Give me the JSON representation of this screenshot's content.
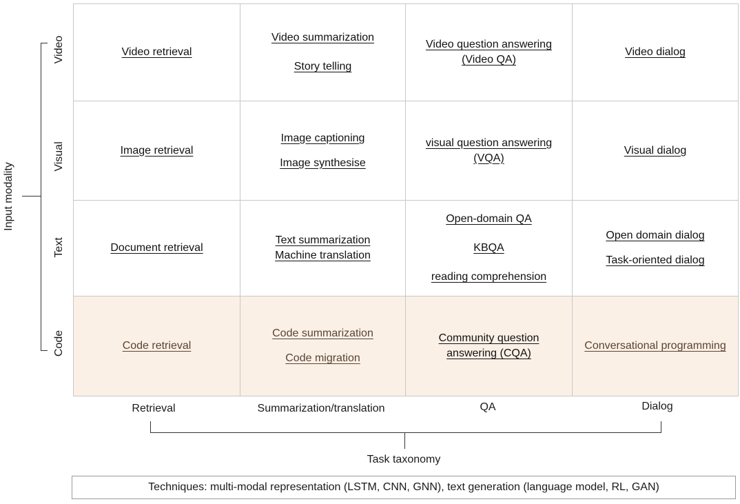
{
  "rows": [
    {
      "label": "Video",
      "cells": [
        [
          "Video retrieval"
        ],
        [
          "Video summarization",
          "Story telling"
        ],
        [
          "Video question answering",
          "(Video QA)"
        ],
        [
          "Video dialog"
        ]
      ]
    },
    {
      "label": "Visual",
      "cells": [
        [
          "Image retrieval"
        ],
        [
          "Image captioning",
          "Image synthesise"
        ],
        [
          "visual question answering",
          "(VQA)"
        ],
        [
          "Visual dialog"
        ]
      ]
    },
    {
      "label": "Text",
      "cells": [
        [
          "Document retrieval"
        ],
        [
          "Text summarization",
          "Machine translation"
        ],
        [
          "Open-domain QA",
          "KBQA",
          "reading comprehension"
        ],
        [
          "Open domain dialog",
          "Task-oriented dialog"
        ]
      ]
    },
    {
      "label": "Code",
      "cells": [
        [
          "Code retrieval"
        ],
        [
          "Code summarization",
          "Code migration"
        ],
        [
          "Community question",
          "answering (CQA)"
        ],
        [
          "Conversational programming"
        ]
      ]
    }
  ],
  "columns": [
    "Retrieval",
    "Summarization/translation",
    "QA",
    "Dialog"
  ],
  "y_axis_title": "Input modality",
  "x_axis_title": "Task taxonomy",
  "techniques": "Techniques: multi-modal representation (LSTM, CNN, GNN), text generation (language model, RL, GAN)",
  "colors": {
    "code_row_bg": "#fbf0e6",
    "border": "#c7c7c7"
  }
}
